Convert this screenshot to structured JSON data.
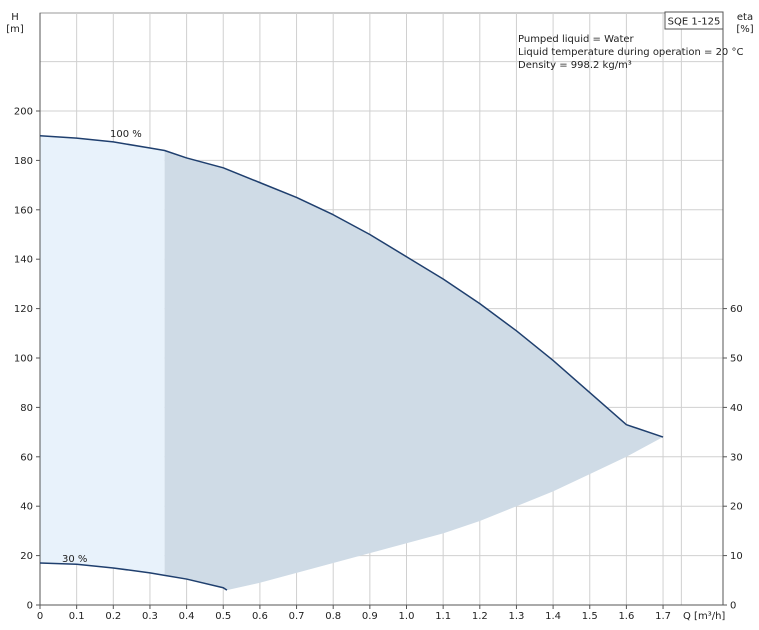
{
  "chart_data": {
    "type": "area",
    "title": "SQE 1-125",
    "xlabel": "Q [m³/h]",
    "ylabel_left": "H",
    "ylabel_left_unit": "[m]",
    "ylabel_right": "eta",
    "ylabel_right_unit": "[%]",
    "xlim": [
      0,
      1.75
    ],
    "ylim_left": [
      0,
      200
    ],
    "ylim_right": [
      0,
      60
    ],
    "x_ticks": [
      0,
      0.1,
      0.2,
      0.3,
      0.4,
      0.5,
      0.6,
      0.7,
      0.8,
      0.9,
      1.0,
      1.1,
      1.2,
      1.3,
      1.4,
      1.5,
      1.6,
      1.7
    ],
    "y_left_ticks": [
      0,
      20,
      40,
      60,
      80,
      100,
      120,
      140,
      160,
      180,
      200
    ],
    "y_right_ticks": [
      0,
      10,
      20,
      30,
      40,
      50,
      60
    ],
    "grid": true,
    "info_lines": [
      "Pumped liquid = Water",
      "Liquid temperature during operation = 20 °C",
      "Density = 998.2 kg/m³"
    ],
    "series": [
      {
        "name": "100 %",
        "x": [
          0,
          0.1,
          0.2,
          0.3,
          0.34,
          0.4,
          0.5,
          0.6,
          0.7,
          0.8,
          0.9,
          1.0,
          1.1,
          1.2,
          1.3,
          1.4,
          1.5,
          1.6,
          1.7
        ],
        "y": [
          190,
          189,
          187.5,
          185,
          184,
          181,
          177,
          171,
          165,
          158,
          150,
          141,
          132,
          122,
          111,
          99,
          86,
          73,
          68
        ]
      },
      {
        "name": "30 %",
        "x": [
          0,
          0.1,
          0.2,
          0.3,
          0.34,
          0.4,
          0.5,
          0.51
        ],
        "y": [
          17,
          16.5,
          15,
          13,
          12,
          10.5,
          7,
          6
        ]
      },
      {
        "name": "",
        "x": [
          0.51,
          0.6,
          0.7,
          0.8,
          0.9,
          1.0,
          1.1,
          1.2,
          1.3,
          1.4,
          1.5,
          1.6,
          1.7
        ],
        "y": [
          6,
          9,
          13,
          17,
          21,
          25,
          29,
          34,
          40,
          46,
          53,
          60,
          68
        ]
      }
    ],
    "colors": {
      "curve": "#1f3f6e",
      "region_light": "#e8f2fb",
      "region_dark": "#cfdbe6",
      "grid": "#d0d0d0",
      "axis": "#999999"
    }
  }
}
